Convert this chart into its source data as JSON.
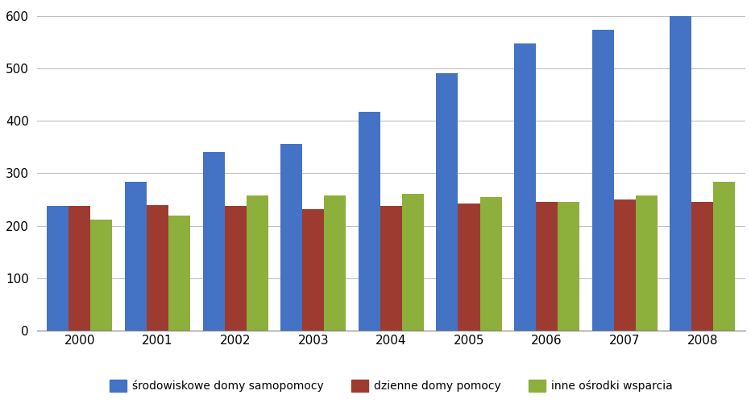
{
  "years": [
    2000,
    2001,
    2002,
    2003,
    2004,
    2005,
    2006,
    2007,
    2008
  ],
  "srodowiskowe": [
    237,
    283,
    341,
    356,
    418,
    491,
    547,
    574,
    600
  ],
  "dzienne": [
    237,
    239,
    237,
    232,
    237,
    242,
    245,
    250,
    246
  ],
  "inne": [
    211,
    220,
    257,
    257,
    261,
    254,
    246,
    257,
    284
  ],
  "colors": {
    "srodowiskowe": "#4472C4",
    "dzienne": "#9E3B30",
    "inne": "#8DAF3B"
  },
  "ylim": [
    0,
    620
  ],
  "yticks": [
    0,
    100,
    200,
    300,
    400,
    500,
    600
  ],
  "legend_labels": [
    "środowiskowe domy samopomocy",
    "dzienne domy pomocy",
    "inne ośrodki wsparcia"
  ],
  "background_color": "#FFFFFF",
  "grid_color": "#C0C0C0"
}
